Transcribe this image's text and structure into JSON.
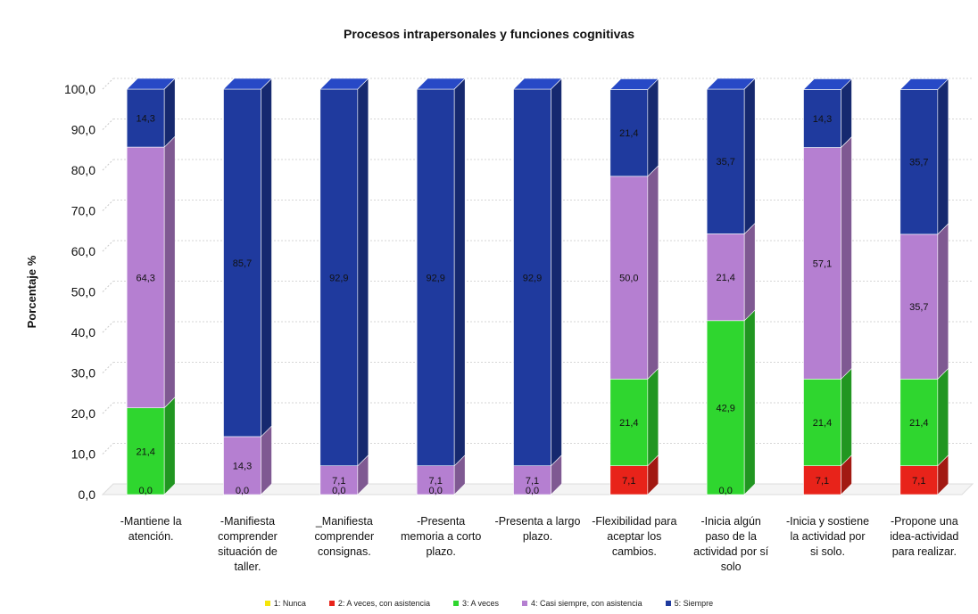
{
  "chart_data": {
    "type": "bar",
    "stacked": true,
    "title": "Procesos intrapersonales y funciones cognitivas",
    "ylabel": "Porcentaje %",
    "xlabel": "",
    "ylim": [
      0,
      100
    ],
    "yticks": [
      "0,0",
      "10,0",
      "20,0",
      "30,0",
      "40,0",
      "50,0",
      "60,0",
      "70,0",
      "80,0",
      "90,0",
      "100,0"
    ],
    "categories": [
      [
        "-Mantiene la",
        "atención."
      ],
      [
        "-Manifiesta",
        "comprender",
        "situación de",
        "taller."
      ],
      [
        "_Manifiesta",
        "comprender",
        "consignas."
      ],
      [
        "-Presenta",
        "memoria a corto",
        "plazo."
      ],
      [
        "-Presenta a largo",
        "plazo."
      ],
      [
        "-Flexibilidad para",
        "aceptar los",
        "cambios."
      ],
      [
        "-Inicia algún",
        "paso de la",
        "actividad por sí",
        "solo"
      ],
      [
        "-Inicia y sostiene",
        "la actividad por",
        "si solo."
      ],
      [
        "-Propone una",
        "idea-actividad",
        "para realizar."
      ]
    ],
    "series": [
      {
        "name": "1: Nunca",
        "color": "#f5e60a",
        "values": [
          0,
          0,
          0,
          0,
          0,
          0,
          0,
          0,
          0
        ]
      },
      {
        "name": "2: A veces, con asistencia",
        "color": "#e8231a",
        "values": [
          0,
          0,
          0,
          0,
          0,
          7.1,
          0,
          7.1,
          7.1
        ]
      },
      {
        "name": "3: A veces",
        "color": "#2fd62f",
        "values": [
          21.4,
          0,
          0,
          0,
          0,
          21.4,
          42.9,
          21.4,
          21.4
        ]
      },
      {
        "name": "4: Casi siempre, con asistencia",
        "color": "#b57fd1",
        "values": [
          64.3,
          14.3,
          7.1,
          7.1,
          7.1,
          50.0,
          21.4,
          57.1,
          35.7
        ]
      },
      {
        "name": "5: Siempre",
        "color": "#1f3a9e",
        "values": [
          14.3,
          85.7,
          92.9,
          92.9,
          92.9,
          21.4,
          35.7,
          14.3,
          35.7
        ]
      }
    ],
    "data_labels": [
      [
        "0,0",
        "21,4",
        "64,3",
        "14,3"
      ],
      [
        "0,0",
        "14,3",
        "85,7"
      ],
      [
        "0,0",
        "7,1",
        "92,9"
      ],
      [
        "0,0",
        "7,1",
        "92,9"
      ],
      [
        "0,0",
        "7,1",
        "92,9"
      ],
      [
        "7,1",
        "21,4",
        "50,0",
        "21,4"
      ],
      [
        "0,0",
        "42,9",
        "21,4",
        "35,7"
      ],
      [
        "7,1",
        "21,4",
        "57,1",
        "14,3"
      ],
      [
        "7,1",
        "21,4",
        "35,7",
        "35,7"
      ]
    ],
    "label_series": [
      [
        0,
        2,
        3,
        4
      ],
      [
        0,
        3,
        4
      ],
      [
        0,
        3,
        4
      ],
      [
        0,
        3,
        4
      ],
      [
        0,
        3,
        4
      ],
      [
        1,
        2,
        3,
        4
      ],
      [
        0,
        2,
        3,
        4
      ],
      [
        1,
        2,
        3,
        4
      ],
      [
        1,
        2,
        3,
        4
      ]
    ],
    "grid": true,
    "legend": "bottom"
  }
}
